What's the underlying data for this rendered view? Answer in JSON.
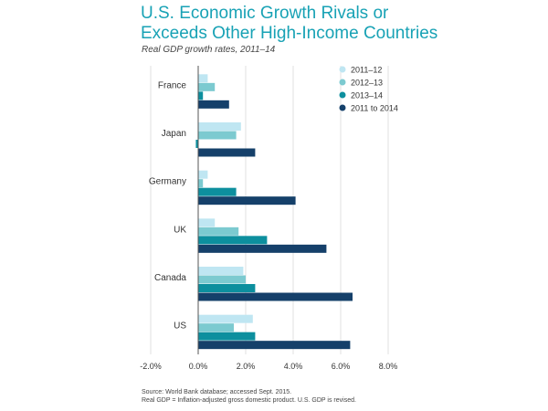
{
  "chart_data": {
    "type": "bar",
    "orientation": "horizontal",
    "title": "U.S. Economic Growth Rivals or Exceeds Other High-Income Countries",
    "title_lines": [
      "U.S. Economic Growth Rivals or",
      "Exceeds Other High-Income Countries"
    ],
    "subtitle": "Real GDP growth rates, 2011–14",
    "categories": [
      "France",
      "Japan",
      "Germany",
      "UK",
      "Canada",
      "US"
    ],
    "series": [
      {
        "name": "2011–12",
        "color": "#bfe6f2",
        "values": [
          0.4,
          1.8,
          0.4,
          0.7,
          1.9,
          2.3
        ]
      },
      {
        "name": "2012–13",
        "color": "#7ccad0",
        "values": [
          0.7,
          1.6,
          0.2,
          1.7,
          2.0,
          1.5
        ]
      },
      {
        "name": "2013–14",
        "color": "#0d8f9e",
        "values": [
          0.2,
          -0.1,
          1.6,
          2.9,
          2.4,
          2.4
        ]
      },
      {
        "name": "2011 to 2014",
        "color": "#15406a",
        "values": [
          1.3,
          2.4,
          4.1,
          5.4,
          6.5,
          6.4
        ]
      }
    ],
    "xlim": [
      -2.0,
      8.0
    ],
    "xticks": [
      -2,
      0,
      2,
      4,
      6,
      8
    ],
    "xtick_labels": [
      "-2.0%",
      "0.0%",
      "2.0%",
      "4.0%",
      "6.0%",
      "8.0%"
    ],
    "xlabel": "",
    "ylabel": "",
    "grid": "vertical",
    "legend": "top-right"
  },
  "source": {
    "line1": "Source: World Bank database; accessed Sept. 2015.",
    "line2": "Real GDP = Inflation-adjusted gross domestic product. U.S. GDP is revised."
  }
}
